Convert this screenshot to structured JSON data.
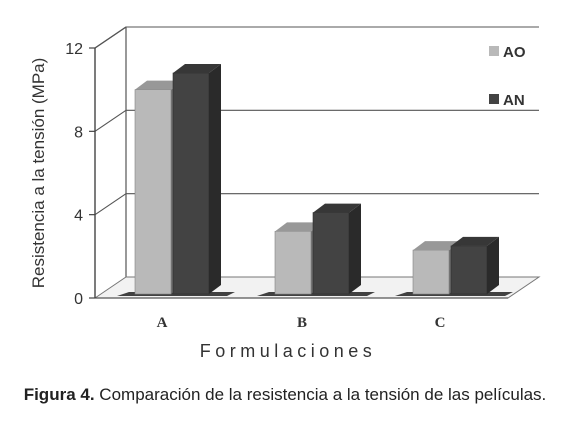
{
  "chart_data": {
    "type": "bar",
    "categories": [
      "A",
      "B",
      "C"
    ],
    "series": [
      {
        "name": "AO",
        "values": [
          10.0,
          3.2,
          2.3
        ],
        "color": "#b9b9b9"
      },
      {
        "name": "AN",
        "values": [
          10.8,
          4.1,
          2.5
        ],
        "color": "#434343"
      }
    ],
    "xlabel": "Formulaciones",
    "ylabel": "Resistencia a la tensión (MPa)",
    "ylim": [
      0,
      12
    ],
    "yticks": [
      0,
      4,
      8,
      12
    ],
    "grid": true,
    "legend_position": "right",
    "three_d": true
  },
  "caption": {
    "label": "Figura 4.",
    "text": "Comparación de la resistencia a la tensión de las películas."
  }
}
